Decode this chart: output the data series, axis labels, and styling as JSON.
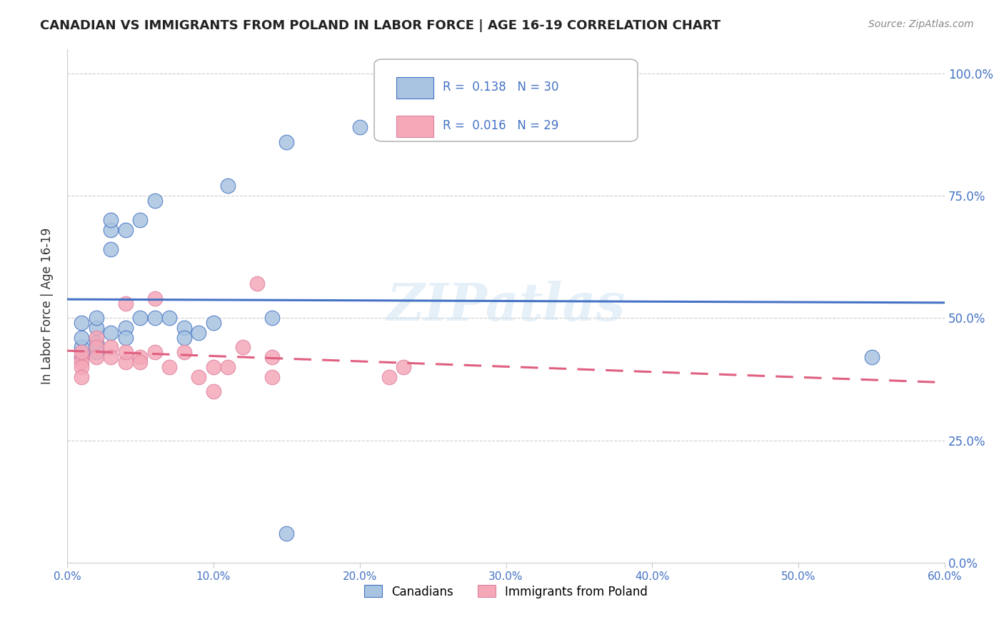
{
  "title": "CANADIAN VS IMMIGRANTS FROM POLAND IN LABOR FORCE | AGE 16-19 CORRELATION CHART",
  "source": "Source: ZipAtlas.com",
  "ylabel": "In Labor Force | Age 16-19",
  "xlabel_ticks": [
    "0.0%",
    "10.0%",
    "20.0%",
    "30.0%",
    "40.0%",
    "50.0%",
    "60.0%"
  ],
  "xlabel_vals": [
    0.0,
    0.1,
    0.2,
    0.3,
    0.4,
    0.5,
    0.6
  ],
  "ylabel_ticks": [
    "0.0%",
    "25.0%",
    "50.0%",
    "75.0%",
    "100.0%"
  ],
  "ylabel_vals": [
    0.0,
    0.25,
    0.5,
    0.75,
    1.0
  ],
  "xlim": [
    0.0,
    0.6
  ],
  "ylim": [
    0.0,
    1.05
  ],
  "canadians_x": [
    0.01,
    0.01,
    0.01,
    0.01,
    0.02,
    0.02,
    0.02,
    0.02,
    0.03,
    0.03,
    0.03,
    0.03,
    0.04,
    0.04,
    0.04,
    0.05,
    0.05,
    0.06,
    0.06,
    0.07,
    0.08,
    0.08,
    0.09,
    0.1,
    0.11,
    0.14,
    0.15,
    0.2,
    0.55,
    0.15
  ],
  "canadians_y": [
    0.44,
    0.46,
    0.49,
    0.42,
    0.48,
    0.5,
    0.45,
    0.43,
    0.64,
    0.68,
    0.7,
    0.47,
    0.48,
    0.46,
    0.68,
    0.7,
    0.5,
    0.74,
    0.5,
    0.5,
    0.48,
    0.46,
    0.47,
    0.49,
    0.77,
    0.5,
    0.86,
    0.89,
    0.42,
    0.06
  ],
  "poland_x": [
    0.01,
    0.01,
    0.01,
    0.01,
    0.01,
    0.02,
    0.02,
    0.02,
    0.03,
    0.03,
    0.04,
    0.04,
    0.04,
    0.05,
    0.05,
    0.06,
    0.06,
    0.07,
    0.08,
    0.09,
    0.1,
    0.1,
    0.11,
    0.12,
    0.13,
    0.14,
    0.14,
    0.22,
    0.23
  ],
  "poland_y": [
    0.42,
    0.41,
    0.43,
    0.4,
    0.38,
    0.46,
    0.44,
    0.42,
    0.44,
    0.42,
    0.41,
    0.43,
    0.53,
    0.42,
    0.41,
    0.54,
    0.43,
    0.4,
    0.43,
    0.38,
    0.35,
    0.4,
    0.4,
    0.44,
    0.57,
    0.42,
    0.38,
    0.38,
    0.4
  ],
  "r_canadian": 0.138,
  "n_canadian": 30,
  "r_poland": 0.016,
  "n_poland": 29,
  "canadian_color": "#a8c4e0",
  "poland_color": "#f4a8b8",
  "trendline_canadian_color": "#4472c4",
  "trendline_poland_color": "#e06080",
  "watermark": "ZIPatlas",
  "background_color": "#ffffff",
  "grid_color": "#cccccc"
}
